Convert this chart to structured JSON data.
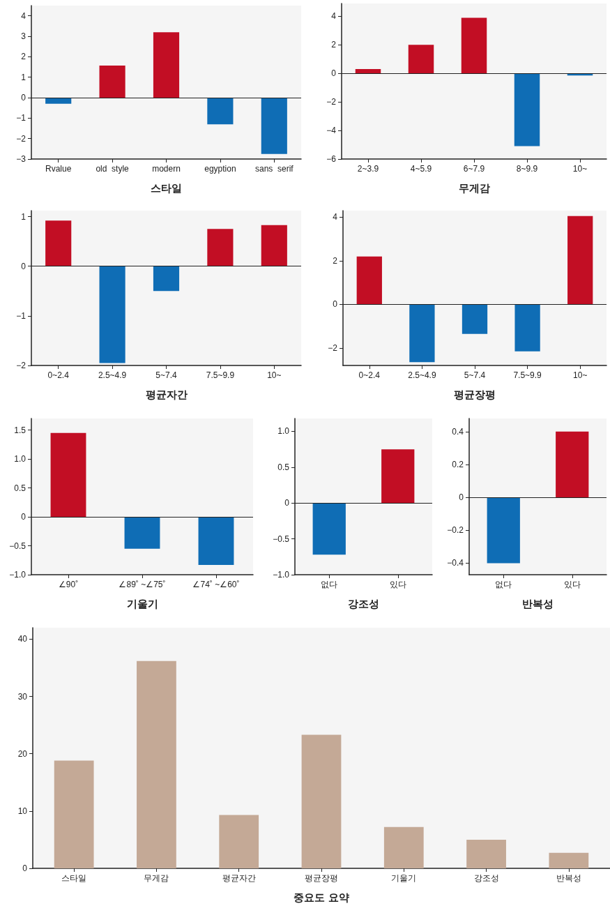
{
  "chart_data": [
    {
      "type": "bar",
      "xlabel": "스타일",
      "categories": [
        "Rvalue",
        "old  style",
        "modern",
        "egyption",
        "sans  serif"
      ],
      "values": [
        -0.3,
        1.57,
        3.2,
        -1.3,
        -2.75
      ],
      "colors": [
        "#0f6db5",
        "#c20e24",
        "#c20e24",
        "#0f6db5",
        "#0f6db5"
      ],
      "ylim": [
        -3,
        4.5
      ],
      "yticks": [
        {
          "value": -3,
          "label": "−3"
        },
        {
          "value": -2,
          "label": "−2"
        },
        {
          "value": -1,
          "label": "−1"
        },
        0,
        1,
        2,
        3,
        4
      ],
      "ref_lines": [
        {
          "axis": "y",
          "value": 0
        }
      ],
      "grid": false
    },
    {
      "type": "bar",
      "xlabel": "무게감",
      "categories": [
        "2~3.9",
        "4~5.9",
        "6~7.9",
        "8~9.9",
        "10~"
      ],
      "values": [
        0.3,
        2.0,
        3.9,
        -5.1,
        -0.15
      ],
      "colors": [
        "#c20e24",
        "#c20e24",
        "#c20e24",
        "#0f6db5",
        "#0f6db5"
      ],
      "ylim": [
        -6,
        4.9
      ],
      "yticks": [
        {
          "value": -6,
          "label": "−6"
        },
        {
          "value": -4,
          "label": "−4"
        },
        {
          "value": -2,
          "label": "−2"
        },
        0,
        2,
        4
      ],
      "ref_lines": [
        {
          "axis": "y",
          "value": 0
        }
      ],
      "grid": false
    },
    {
      "type": "bar",
      "xlabel": "평균자간",
      "categories": [
        "0~2.4",
        "2.5~4.9",
        "5~7.4",
        "7.5~9.9",
        "10~"
      ],
      "values": [
        0.92,
        -1.95,
        -0.5,
        0.75,
        0.83
      ],
      "colors": [
        "#c20e24",
        "#0f6db5",
        "#0f6db5",
        "#c20e24",
        "#c20e24"
      ],
      "ylim": [
        -2,
        1.12
      ],
      "yticks": [
        {
          "value": -2,
          "label": "−2"
        },
        {
          "value": -1,
          "label": "−1"
        },
        0,
        1
      ],
      "ref_lines": [
        {
          "axis": "y",
          "value": 0
        }
      ],
      "grid": false
    },
    {
      "type": "bar",
      "xlabel": "평균장평",
      "categories": [
        "0~2.4",
        "2.5~4.9",
        "5~7.4",
        "7.5~9.9",
        "10~"
      ],
      "values": [
        2.2,
        -2.65,
        -1.35,
        -2.15,
        4.05
      ],
      "colors": [
        "#c20e24",
        "#0f6db5",
        "#0f6db5",
        "#0f6db5",
        "#c20e24"
      ],
      "ylim": [
        -2.8,
        4.3
      ],
      "yticks": [
        {
          "value": -2,
          "label": "−2"
        },
        0,
        2,
        4
      ],
      "ref_lines": [
        {
          "axis": "y",
          "value": 0
        }
      ],
      "grid": false
    },
    {
      "type": "bar",
      "xlabel": "기울기",
      "categories": [
        "∠90˚",
        "∠89˚ ~∠75˚",
        "∠74˚ ~∠60˚"
      ],
      "values": [
        1.45,
        -0.55,
        -0.83
      ],
      "colors": [
        "#c20e24",
        "#0f6db5",
        "#0f6db5"
      ],
      "ylim": [
        -1,
        1.7
      ],
      "yticks": [
        {
          "value": -1,
          "label": "−1.0"
        },
        {
          "value": -0.5,
          "label": "−0.5"
        },
        0,
        {
          "value": 0.5,
          "label": "0.5"
        },
        {
          "value": 1,
          "label": "1.0"
        },
        {
          "value": 1.5,
          "label": "1.5"
        }
      ],
      "ref_lines": [
        {
          "axis": "y",
          "value": 0
        }
      ],
      "grid": false
    },
    {
      "type": "bar",
      "xlabel": "강조성",
      "categories": [
        "없다",
        "있다"
      ],
      "values": [
        -0.72,
        0.75
      ],
      "colors": [
        "#0f6db5",
        "#c20e24"
      ],
      "ylim": [
        -1,
        1.18
      ],
      "yticks": [
        {
          "value": -1,
          "label": "−1.0"
        },
        {
          "value": -0.5,
          "label": "−0.5"
        },
        0,
        {
          "value": 0.5,
          "label": "0.5"
        },
        {
          "value": 1,
          "label": "1.0"
        }
      ],
      "ref_lines": [
        {
          "axis": "y",
          "value": 0
        }
      ],
      "grid": false
    },
    {
      "type": "bar",
      "xlabel": "반복성",
      "categories": [
        "없다",
        "있다"
      ],
      "values": [
        -0.4,
        0.4
      ],
      "colors": [
        "#0f6db5",
        "#c20e24"
      ],
      "ylim": [
        -0.47,
        0.48
      ],
      "yticks": [
        {
          "value": -0.4,
          "label": "−0.4"
        },
        {
          "value": -0.2,
          "label": "−0.2"
        },
        0,
        {
          "value": 0.2,
          "label": "0.2"
        },
        {
          "value": 0.4,
          "label": "0.4"
        }
      ],
      "ref_lines": [
        {
          "axis": "y",
          "value": 0
        }
      ],
      "grid": false
    },
    {
      "type": "bar",
      "xlabel": "중요도 요약",
      "categories": [
        "스타일",
        "무게감",
        "평균자간",
        "평균장평",
        "기울기",
        "강조성",
        "반복성"
      ],
      "values": [
        18.8,
        36.2,
        9.3,
        23.3,
        7.2,
        5.0,
        2.7
      ],
      "colors": [
        "#c4a996",
        "#c4a996",
        "#c4a996",
        "#c4a996",
        "#c4a996",
        "#c4a996",
        "#c4a996"
      ],
      "ylim": [
        0,
        42
      ],
      "yticks": [
        0,
        10,
        20,
        30,
        40
      ],
      "grid": false
    }
  ]
}
